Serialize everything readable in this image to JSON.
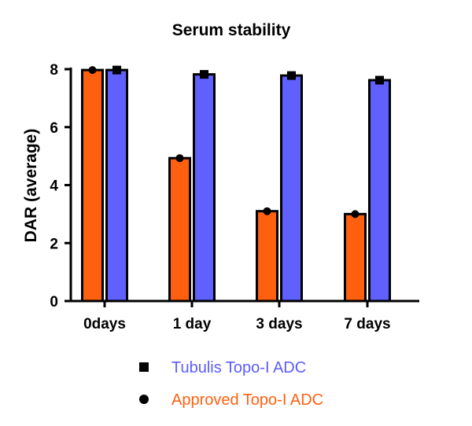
{
  "chart_data": {
    "type": "bar",
    "title": "Serum stability",
    "xlabel": "",
    "ylabel": "DAR (average)",
    "ylim": [
      0,
      8
    ],
    "yticks": [
      0,
      2,
      4,
      6,
      8
    ],
    "categories": [
      "0days",
      "1 day",
      "3 days",
      "7 days"
    ],
    "series": [
      {
        "name": "Approved Topo-I ADC",
        "marker": "circle",
        "color": "#ff6010",
        "label_color": "#ff6010",
        "values": [
          7.97,
          4.93,
          3.1,
          3.0
        ]
      },
      {
        "name": "Tubulis Topo-I ADC",
        "marker": "square",
        "color": "#6060ff",
        "label_color": "#5c5cff",
        "values": [
          7.97,
          7.82,
          7.78,
          7.62
        ]
      }
    ],
    "legend": {
      "placement": "bottom",
      "order": [
        "Tubulis Topo-I ADC",
        "Approved Topo-I ADC"
      ]
    },
    "grid": false
  }
}
